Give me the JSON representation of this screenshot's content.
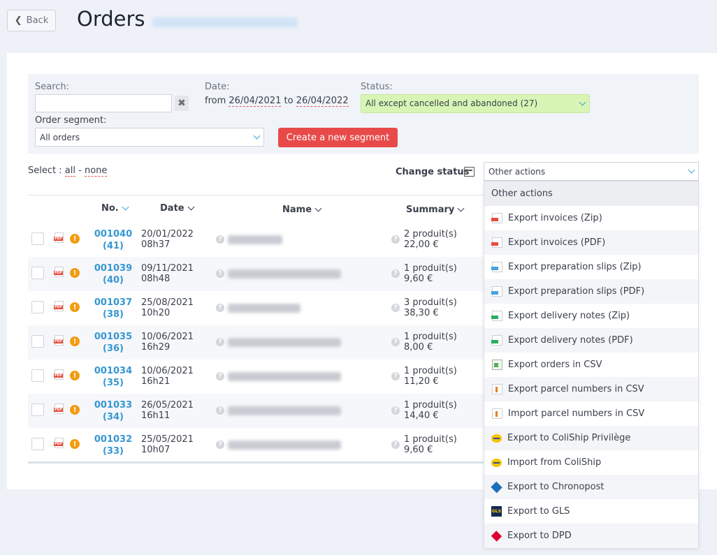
{
  "header": {
    "back_label": "Back",
    "title": "Orders"
  },
  "filters": {
    "search_label": "Search:",
    "search_value": "",
    "clear_icon": "x-icon",
    "date_label": "Date:",
    "date_from_prefix": "from",
    "date_from": "26/04/2021",
    "date_to_prefix": "to",
    "date_to": "26/04/2022",
    "status_label": "Status:",
    "status_value": "All except cancelled and abandoned (27)",
    "segment_label": "Order segment:",
    "segment_value": "All orders",
    "create_segment_label": "Create a new segment"
  },
  "toolbar": {
    "select_prefix": "Select :",
    "select_all": "all",
    "select_sep": "-",
    "select_none": "none",
    "change_status_label": "Change status",
    "other_actions_value": "Other actions"
  },
  "table": {
    "columns": [
      "No.",
      "Date",
      "Name",
      "Summary"
    ],
    "rows": [
      {
        "no": "001040",
        "count": "(41)",
        "date": "20/01/2022",
        "time": "08h37",
        "summary_items": "2 produit(s)",
        "summary_total": "22,00 €"
      },
      {
        "no": "001039",
        "count": "(40)",
        "date": "09/11/2021",
        "time": "08h48",
        "summary_items": "1 produit(s)",
        "summary_total": "9,60 €"
      },
      {
        "no": "001037",
        "count": "(38)",
        "date": "25/08/2021",
        "time": "10h20",
        "summary_items": "3 produit(s)",
        "summary_total": "38,30 €"
      },
      {
        "no": "001035",
        "count": "(36)",
        "date": "10/06/2021",
        "time": "16h29",
        "summary_items": "1 produit(s)",
        "summary_total": "8,00 €"
      },
      {
        "no": "001034",
        "count": "(35)",
        "date": "10/06/2021",
        "time": "16h21",
        "summary_items": "1 produit(s)",
        "summary_total": "11,20 €"
      },
      {
        "no": "001033",
        "count": "(34)",
        "date": "26/05/2021",
        "time": "16h11",
        "summary_items": "1 produit(s)",
        "summary_total": "14,40 €"
      },
      {
        "no": "001032",
        "count": "(33)",
        "date": "25/05/2021",
        "time": "10h07",
        "summary_items": "1 produit(s)",
        "summary_total": "9,60 €"
      }
    ]
  },
  "dropdown": {
    "header": "Other actions",
    "items": [
      {
        "label": "Export invoices (Zip)",
        "icon": "pdf-red-icon"
      },
      {
        "label": "Export invoices (PDF)",
        "icon": "pdf-red-icon"
      },
      {
        "label": "Export preparation slips (Zip)",
        "icon": "pdf-blue-icon"
      },
      {
        "label": "Export preparation slips (PDF)",
        "icon": "pdf-blue-icon"
      },
      {
        "label": "Export delivery notes (Zip)",
        "icon": "pdf-green-icon"
      },
      {
        "label": "Export delivery notes (PDF)",
        "icon": "pdf-green-icon"
      },
      {
        "label": "Export orders in CSV",
        "icon": "csv-icon"
      },
      {
        "label": "Export parcel numbers in CSV",
        "icon": "export-arrow-icon"
      },
      {
        "label": "Import parcel numbers in CSV",
        "icon": "import-arrow-icon"
      },
      {
        "label": "Export to ColiShip Privilège",
        "icon": "colissimo-icon"
      },
      {
        "label": "Import from ColiShip",
        "icon": "colissimo-icon"
      },
      {
        "label": "Export to Chronopost",
        "icon": "chronopost-icon"
      },
      {
        "label": "Export to GLS",
        "icon": "gls-icon"
      },
      {
        "label": "Export to DPD",
        "icon": "dpd-icon"
      }
    ]
  },
  "colors": {
    "accent": "#3597d3",
    "danger": "#e84a4a",
    "status_bg": "#d8f5b5"
  }
}
